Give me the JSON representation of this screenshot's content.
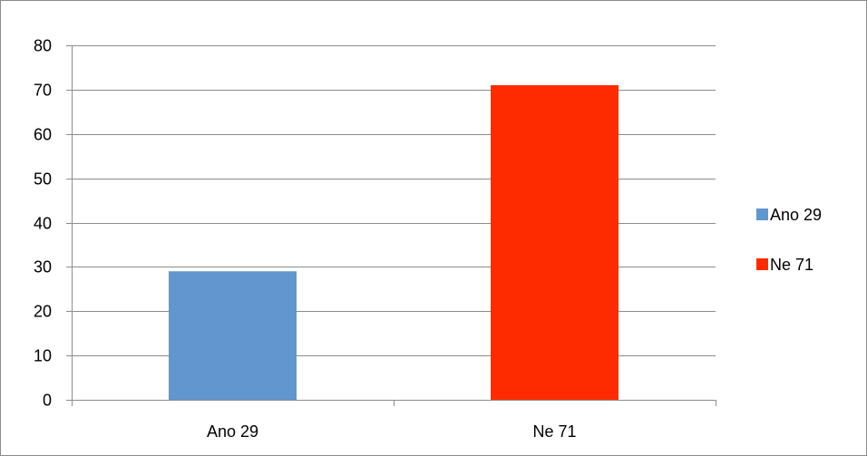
{
  "chart_data": {
    "type": "bar",
    "categories": [
      "Ano 29",
      "Ne 71"
    ],
    "series": [
      {
        "name": "Ano 29",
        "category": "Ano 29",
        "value": 29,
        "color": "#6196cf"
      },
      {
        "name": "Ne 71",
        "category": "Ne 71",
        "value": 71,
        "color": "#ff2b00"
      }
    ],
    "ylim": [
      0,
      80
    ],
    "yticks": [
      0,
      10,
      20,
      30,
      40,
      50,
      60,
      70,
      80
    ],
    "grid": true,
    "legend_position": "right",
    "title": "",
    "xlabel": "",
    "ylabel": ""
  },
  "colors": {
    "gridline": "#8c8c8c",
    "axis": "#8c8c8c",
    "frame": "#8c8c8c"
  }
}
